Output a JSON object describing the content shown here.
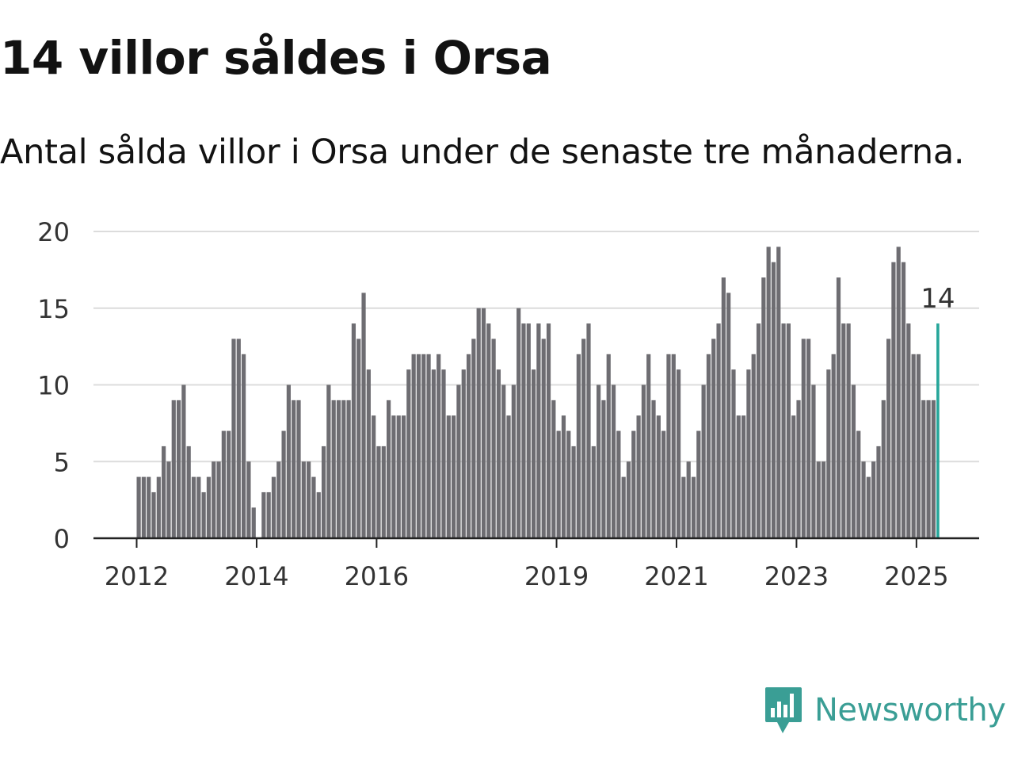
{
  "header": {
    "title": "14 villor såldes i Orsa",
    "subtitle": "Antal sålda villor i Orsa under de senaste tre månaderna."
  },
  "brand": {
    "name": "Newsworthy",
    "color": "#3a9e95"
  },
  "colors": {
    "bar": "#6e6d72",
    "highlight": "#26a69a",
    "grid": "#dcdcdc",
    "axis": "#222222"
  },
  "chart_data": {
    "type": "bar",
    "start": "2012-01",
    "frequency": "monthly",
    "ylim": [
      0,
      20
    ],
    "yticks": [
      0,
      5,
      10,
      15,
      20
    ],
    "xticks": [
      "2012",
      "2014",
      "2016",
      "2019",
      "2021",
      "2023",
      "2025"
    ],
    "grid": true,
    "highlight_label": "14",
    "values": [
      4,
      4,
      4,
      3,
      4,
      6,
      5,
      9,
      9,
      10,
      6,
      4,
      4,
      3,
      4,
      5,
      5,
      7,
      7,
      13,
      13,
      12,
      5,
      2,
      0,
      3,
      3,
      4,
      5,
      7,
      10,
      9,
      9,
      5,
      5,
      4,
      3,
      6,
      10,
      9,
      9,
      9,
      9,
      14,
      13,
      16,
      11,
      8,
      6,
      6,
      9,
      8,
      8,
      8,
      11,
      12,
      12,
      12,
      12,
      11,
      12,
      11,
      8,
      8,
      10,
      11,
      12,
      13,
      15,
      15,
      14,
      13,
      11,
      10,
      8,
      10,
      15,
      14,
      14,
      11,
      14,
      13,
      14,
      9,
      7,
      8,
      7,
      6,
      12,
      13,
      14,
      6,
      10,
      9,
      12,
      10,
      7,
      4,
      5,
      7,
      8,
      10,
      12,
      9,
      8,
      7,
      12,
      12,
      11,
      4,
      5,
      4,
      7,
      10,
      12,
      13,
      14,
      17,
      16,
      11,
      8,
      8,
      11,
      12,
      14,
      17,
      19,
      18,
      19,
      14,
      14,
      8,
      9,
      13,
      13,
      10,
      5,
      5,
      11,
      12,
      17,
      14,
      14,
      10,
      7,
      5,
      4,
      5,
      6,
      9,
      13,
      18,
      19,
      18,
      14,
      12,
      12,
      9,
      9,
      9,
      14
    ]
  }
}
